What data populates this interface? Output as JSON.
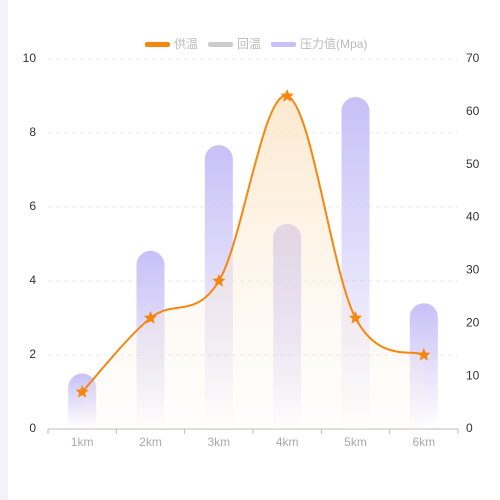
{
  "chart_data": {
    "type": "line-bar",
    "categories": [
      "1km",
      "2km",
      "3km",
      "4km",
      "5km",
      "6km"
    ],
    "series": [
      {
        "name": "供温",
        "type": "line",
        "color": "#f5870f",
        "values": [
          1,
          3,
          4,
          9,
          3,
          2
        ]
      },
      {
        "name": "回温",
        "type": "line",
        "color": "#cccccc",
        "values": [
          null,
          null,
          null,
          null,
          null,
          null
        ]
      },
      {
        "name": "压力值(Mpa)",
        "type": "bar",
        "axis": "y2",
        "color": "#c8c0f7",
        "values": [
          10.5,
          33.7,
          53.7,
          38.8,
          62.8,
          23.8
        ]
      }
    ],
    "ylim": [
      0,
      10
    ],
    "yticks": [
      0,
      2,
      4,
      6,
      8,
      10
    ],
    "y2lim": [
      0,
      70
    ],
    "y2ticks": [
      0,
      10,
      20,
      30,
      40,
      50,
      60,
      70
    ],
    "grid": true,
    "legend": "top"
  }
}
